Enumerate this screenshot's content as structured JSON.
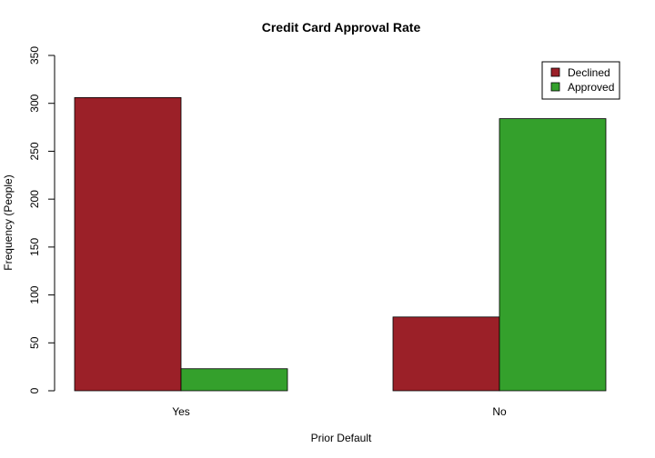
{
  "chart_data": {
    "type": "bar",
    "title": "Credit Card Approval Rate",
    "xlabel": "Prior Default",
    "ylabel": "Frequency (People)",
    "categories": [
      "Yes",
      "No"
    ],
    "series": [
      {
        "name": "Declined",
        "color": "#9b2028",
        "values": [
          306,
          77
        ]
      },
      {
        "name": "Approved",
        "color": "#34a02c",
        "values": [
          23,
          284
        ]
      }
    ],
    "ylim": [
      0,
      350
    ],
    "yticks": [
      0,
      50,
      100,
      150,
      200,
      250,
      300,
      350
    ],
    "grid": false,
    "legend_position": "top-right"
  }
}
